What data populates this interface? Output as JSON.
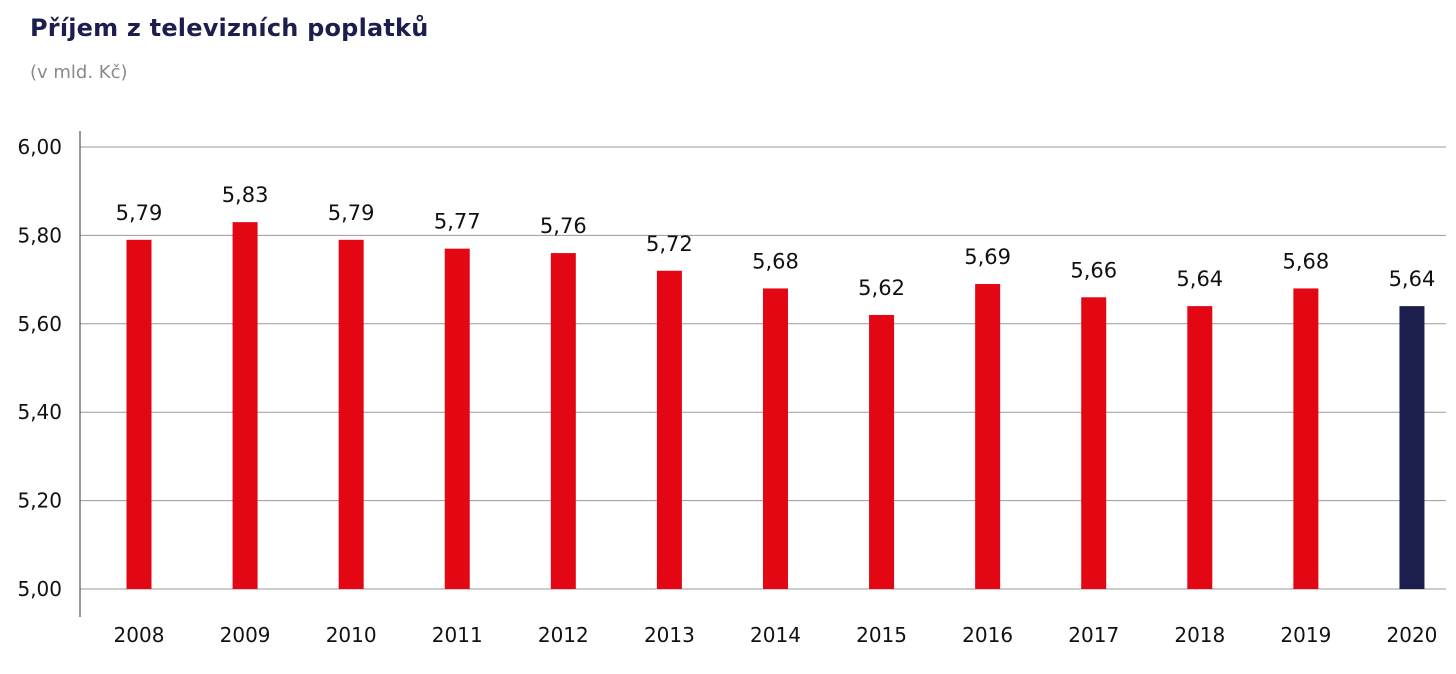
{
  "header": {
    "title": "Příjem z televizních poplatků",
    "subtitle": "(v mld. Kč)"
  },
  "colors": {
    "bar": "#e30613",
    "highlight": "#1c1f4e",
    "grid": "#9a9a9a"
  },
  "chart_data": {
    "type": "bar",
    "title": "Příjem z televizních poplatků",
    "subtitle": "(v mld. Kč)",
    "xlabel": "",
    "ylabel": "",
    "categories": [
      "2008",
      "2009",
      "2010",
      "2011",
      "2012",
      "2013",
      "2014",
      "2015",
      "2016",
      "2017",
      "2018",
      "2019",
      "2020"
    ],
    "values": [
      5.79,
      5.83,
      5.79,
      5.77,
      5.76,
      5.72,
      5.68,
      5.62,
      5.69,
      5.66,
      5.64,
      5.68,
      5.64
    ],
    "value_labels": [
      "5,79",
      "5,83",
      "5,79",
      "5,77",
      "5,76",
      "5,72",
      "5,68",
      "5,62",
      "5,69",
      "5,66",
      "5,64",
      "5,68",
      "5,64"
    ],
    "ylim": [
      5.0,
      6.0
    ],
    "yticks": [
      5.0,
      5.2,
      5.4,
      5.6,
      5.8,
      6.0
    ],
    "ytick_labels": [
      "5,00",
      "5,20",
      "5,40",
      "5,60",
      "5,80",
      "6,00"
    ],
    "highlight_category": "2020",
    "grid": true,
    "legend": "none"
  }
}
